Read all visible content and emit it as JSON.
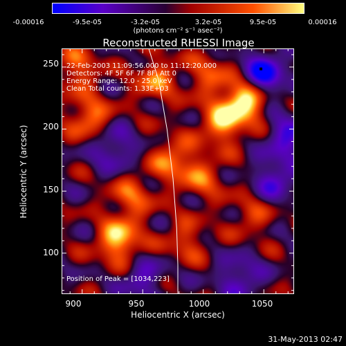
{
  "colorbar": {
    "tick_labels": [
      "-0.00016",
      "-9.5e-05",
      "-3.2e-05",
      "3.2e-05",
      "9.5e-05",
      "0.00016"
    ],
    "units": "(photons cm⁻² s⁻¹ asec⁻²)",
    "range": [
      -0.00016,
      0.00016
    ],
    "colors": [
      "#0000ff",
      "#5a00c8",
      "#2a0034",
      "#a00000",
      "#ff5000",
      "#ffff80"
    ]
  },
  "title": "Reconstructed RHESSI Image",
  "annotations": {
    "time": "22-Feb-2003 11:09:56.000 to 11:12:20.000",
    "detectors": "Detectors: 4F 5F 6F 7F 8F, Att 0",
    "energy": "Energy Range: 12.0 - 25.0 keV",
    "clean": "Clean     Total counts: 1.33E+03",
    "peak": "Position of Peak = [1034,223]"
  },
  "axes": {
    "xlabel": "Heliocentric X (arcsec)",
    "ylabel": "Heliocentric Y (arcsec)",
    "xticks": [
      "900",
      "950",
      "1000",
      "1050"
    ],
    "yticks": [
      "100",
      "150",
      "200",
      "250"
    ]
  },
  "chart_data": {
    "type": "heatmap",
    "xlim": [
      883,
      1075
    ],
    "ylim": [
      67,
      265
    ],
    "peak": [
      1034,
      223
    ],
    "hotspots": [
      {
        "x": 1034,
        "y": 223,
        "v": 1.0
      },
      {
        "x": 930,
        "y": 110,
        "v": 0.85
      },
      {
        "x": 1050,
        "y": 245,
        "v": -0.9
      },
      {
        "x": 1015,
        "y": 205,
        "v": 0.7
      },
      {
        "x": 905,
        "y": 210,
        "v": 0.6
      },
      {
        "x": 960,
        "y": 240,
        "v": 0.55
      },
      {
        "x": 975,
        "y": 175,
        "v": 0.6
      },
      {
        "x": 940,
        "y": 145,
        "v": 0.5
      },
      {
        "x": 1000,
        "y": 160,
        "v": 0.45
      },
      {
        "x": 985,
        "y": 110,
        "v": 0.4
      },
      {
        "x": 1040,
        "y": 130,
        "v": 0.35
      },
      {
        "x": 925,
        "y": 185,
        "v": -0.5
      },
      {
        "x": 1060,
        "y": 160,
        "v": -0.55
      },
      {
        "x": 950,
        "y": 80,
        "v": -0.45
      },
      {
        "x": 1030,
        "y": 80,
        "v": -0.5
      },
      {
        "x": 1070,
        "y": 195,
        "v": -0.6
      },
      {
        "x": 895,
        "y": 250,
        "v": 0.5
      },
      {
        "x": 1005,
        "y": 245,
        "v": 0.45
      }
    ],
    "limb_curve": [
      [
        955,
        265
      ],
      [
        963,
        240
      ],
      [
        970,
        200
      ],
      [
        975,
        160
      ],
      [
        978,
        120
      ],
      [
        979,
        90
      ],
      [
        979,
        67
      ]
    ]
  },
  "timestamp": "31-May-2013 02:47"
}
